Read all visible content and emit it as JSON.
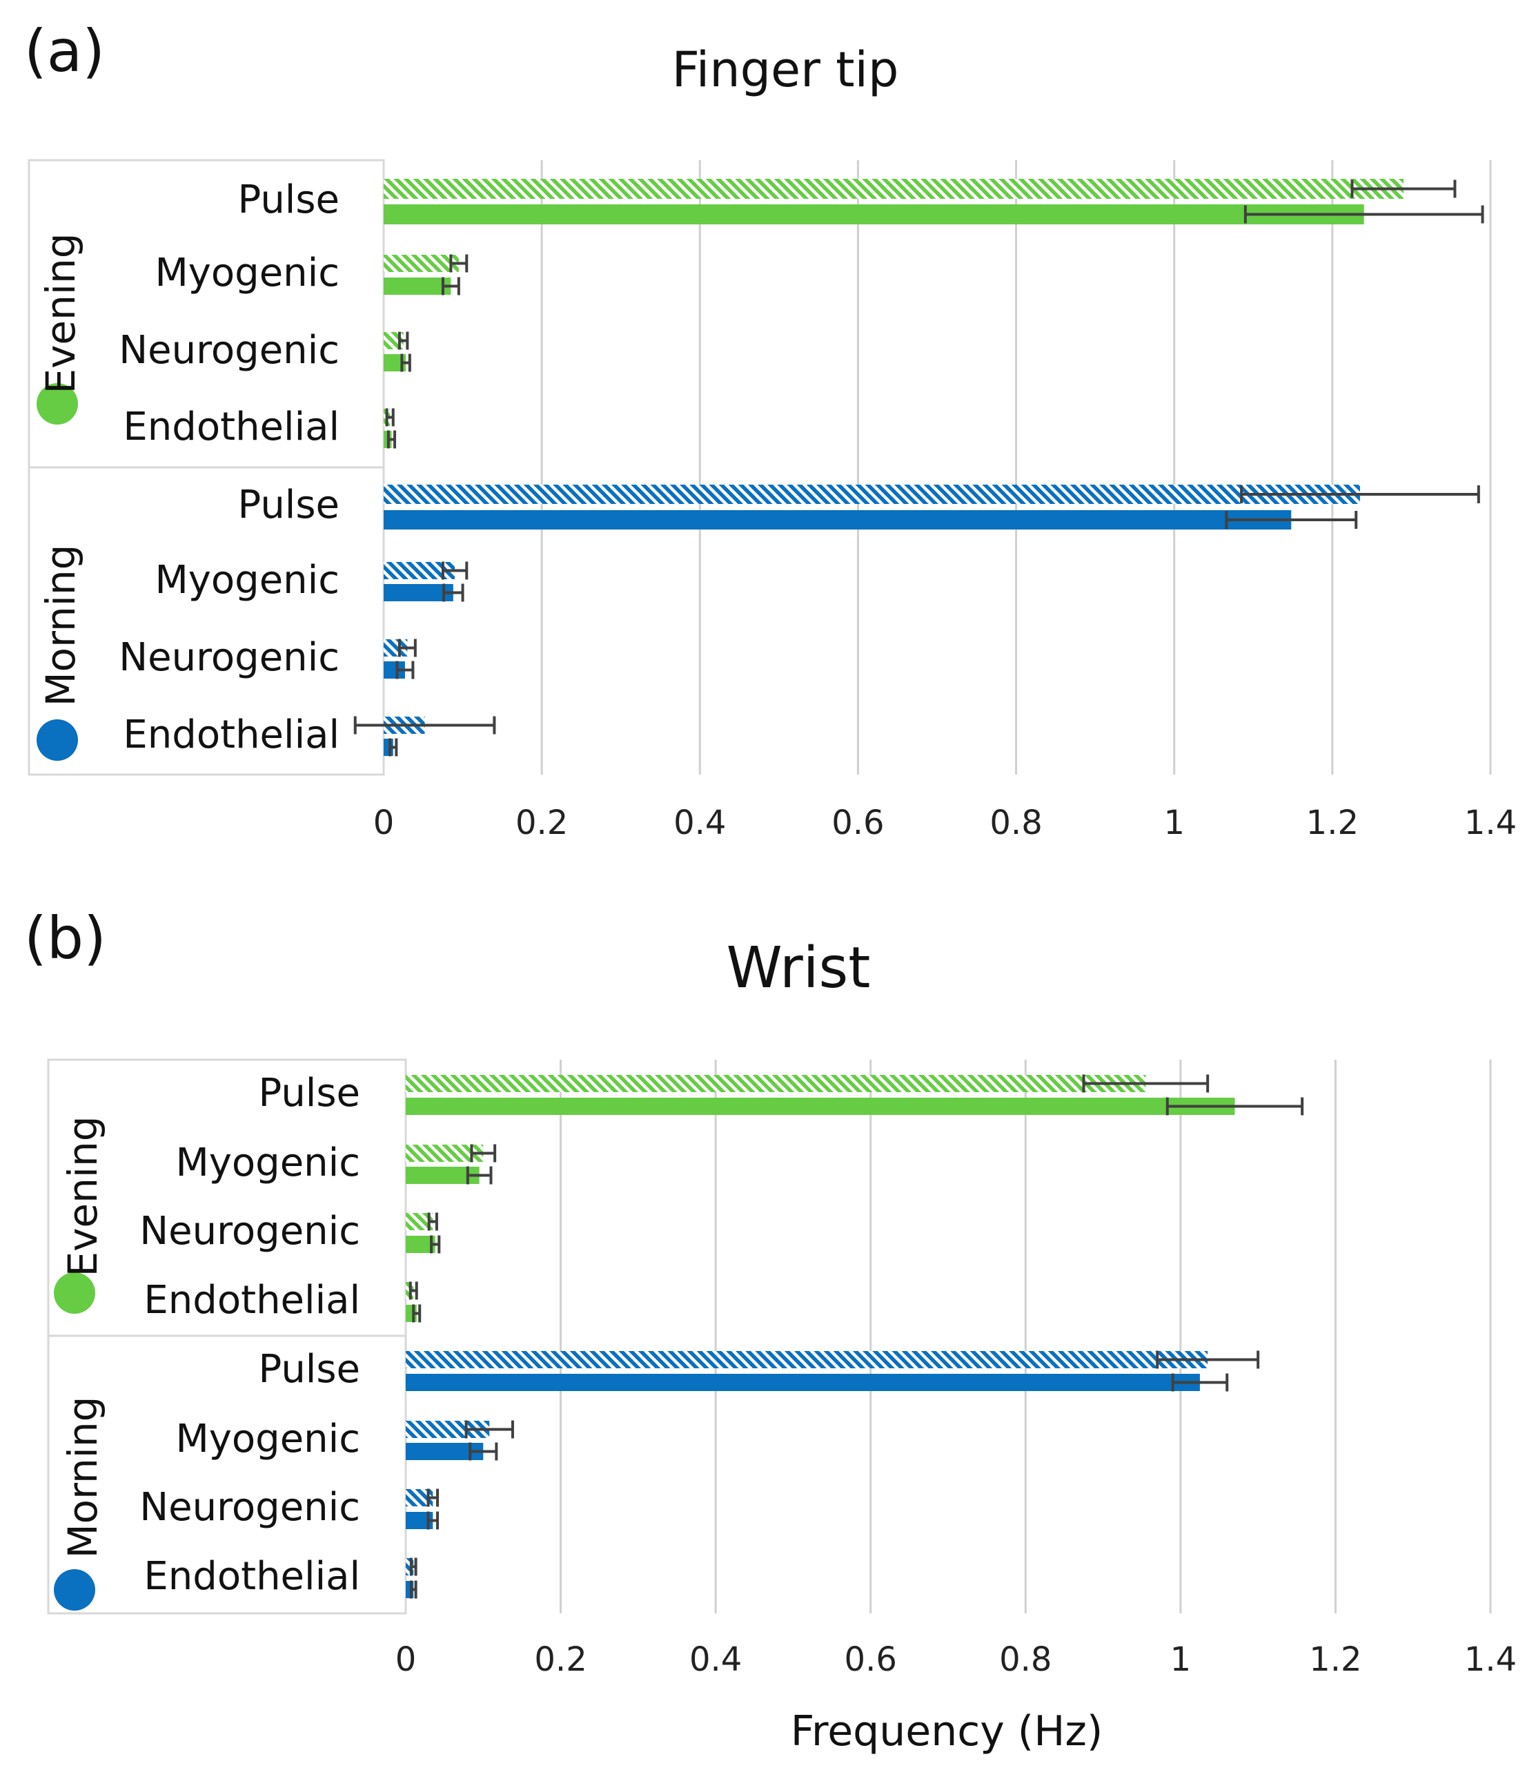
{
  "colors": {
    "evening": "#66cc44",
    "morning": "#0a70c0",
    "grid": "#d0d0d0",
    "error": "#404040",
    "box": "#d8d8d8"
  },
  "chart_data": [
    {
      "type": "bar",
      "orientation": "horizontal",
      "panel_label": "(a)",
      "title": "Finger tip",
      "xlabel": "",
      "xlim": [
        0,
        1.4
      ],
      "xticks": [
        "0",
        "0.2",
        "0.4",
        "0.6",
        "0.8",
        "1",
        "1.2",
        "1.4"
      ],
      "groups": [
        {
          "name": "Evening",
          "color_key": "evening",
          "categories": [
            "Pulse",
            "Myogenic",
            "Neurogenic",
            "Endothelial"
          ],
          "series": [
            {
              "name": "hatched",
              "pattern": "hatched",
              "values": [
                1.29,
                0.095,
                0.025,
                0.008
              ],
              "errors": [
                0.065,
                0.01,
                0.005,
                0.004
              ]
            },
            {
              "name": "solid",
              "pattern": "solid",
              "values": [
                1.24,
                0.085,
                0.028,
                0.01
              ],
              "errors": [
                0.15,
                0.01,
                0.005,
                0.004
              ]
            }
          ]
        },
        {
          "name": "Morning",
          "color_key": "morning",
          "categories": [
            "Pulse",
            "Myogenic",
            "Neurogenic",
            "Endothelial"
          ],
          "series": [
            {
              "name": "hatched",
              "pattern": "hatched",
              "values": [
                1.235,
                0.09,
                0.03,
                0.052
              ],
              "errors": [
                0.15,
                0.015,
                0.01,
                0.088
              ]
            },
            {
              "name": "solid",
              "pattern": "solid",
              "values": [
                1.148,
                0.088,
                0.027,
                0.012
              ],
              "errors": [
                0.082,
                0.012,
                0.01,
                0.004
              ]
            }
          ]
        }
      ]
    },
    {
      "type": "bar",
      "orientation": "horizontal",
      "panel_label": "(b)",
      "title": "Wrist",
      "xlabel": "Frequency (Hz)",
      "xlim": [
        0,
        1.4
      ],
      "xticks": [
        "0",
        "0.2",
        "0.4",
        "0.6",
        "0.8",
        "1",
        "1.2",
        "1.4"
      ],
      "groups": [
        {
          "name": "Evening",
          "color_key": "evening",
          "categories": [
            "Pulse",
            "Myogenic",
            "Neurogenic",
            "Endothelial"
          ],
          "series": [
            {
              "name": "hatched",
              "pattern": "hatched",
              "values": [
                0.955,
                0.1,
                0.035,
                0.01
              ],
              "errors": [
                0.08,
                0.015,
                0.005,
                0.004
              ]
            },
            {
              "name": "solid",
              "pattern": "solid",
              "values": [
                1.07,
                0.095,
                0.038,
                0.014
              ],
              "errors": [
                0.087,
                0.015,
                0.005,
                0.004
              ]
            }
          ]
        },
        {
          "name": "Morning",
          "color_key": "morning",
          "categories": [
            "Pulse",
            "Myogenic",
            "Neurogenic",
            "Endothelial"
          ],
          "series": [
            {
              "name": "hatched",
              "pattern": "hatched",
              "values": [
                1.035,
                0.108,
                0.035,
                0.01
              ],
              "errors": [
                0.065,
                0.03,
                0.006,
                0.003
              ]
            },
            {
              "name": "solid",
              "pattern": "solid",
              "values": [
                1.025,
                0.1,
                0.035,
                0.01
              ],
              "errors": [
                0.035,
                0.017,
                0.006,
                0.003
              ]
            }
          ]
        }
      ]
    }
  ]
}
